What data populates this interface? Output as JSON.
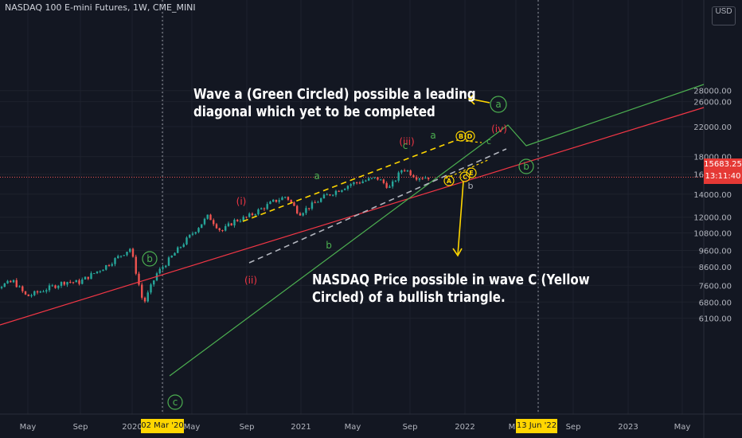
{
  "header": {
    "title": "NASDAQ 100 E-mini Futures, 1W, CME_MINI"
  },
  "annotations": {
    "top": "Wave a (Green Circled) possible a leading\ndiagonal which yet to be completed",
    "bottom": "NASDAQ Price possible in wave C (Yellow\nCircled) of a bullish triangle."
  },
  "price_axis": {
    "currency": "USD",
    "last_price": "15683.25",
    "countdown": "13:11:40"
  },
  "time_markers": {
    "left": "02 Mar '20",
    "right": "13 Jun '22"
  },
  "colors": {
    "background": "#131722",
    "up": "#26a69a",
    "down": "#ef5350",
    "green_line": "#4caf50",
    "red_line": "#f23645",
    "yellow": "#ffd600",
    "grey_dashed": "#b2b5be"
  },
  "chart_data": {
    "type": "candlestick",
    "symbol": "NASDAQ 100 E-mini Futures",
    "timeframe": "1W",
    "exchange": "CME_MINI",
    "y_scale": "log",
    "ylim": [
      6000,
      30000
    ],
    "y_ticks": [
      "28000.00",
      "26000.00",
      "22000.00",
      "18000.00",
      "16000.00",
      "14000.00",
      "12000.00",
      "10800.00",
      "9600.00",
      "8600.00",
      "7600.00",
      "6800.00",
      "6100.00"
    ],
    "x_ticks": [
      "May",
      "Sep",
      "2020",
      "02 Mar '20",
      "May",
      "Sep",
      "2021",
      "May",
      "Sep",
      "2022",
      "Mar",
      "13 Jun '22",
      "Sep",
      "2023",
      "May"
    ],
    "last_price": 15683.25,
    "price_path": [
      {
        "t": "2019-02",
        "v": 7200
      },
      {
        "t": "2019-05",
        "v": 7800
      },
      {
        "t": "2019-06",
        "v": 7050
      },
      {
        "t": "2019-09",
        "v": 7800
      },
      {
        "t": "2019-10",
        "v": 7750
      },
      {
        "t": "2019-12",
        "v": 8600
      },
      {
        "t": "2020-02",
        "v": 9750
      },
      {
        "t": "2020-03",
        "v": 6700
      },
      {
        "t": "2020-04",
        "v": 8200
      },
      {
        "t": "2020-06",
        "v": 10000
      },
      {
        "t": "2020-08",
        "v": 12100
      },
      {
        "t": "2020-09",
        "v": 10900
      },
      {
        "t": "2020-10",
        "v": 11700
      },
      {
        "t": "2020-11",
        "v": 12000
      },
      {
        "t": "2021-01",
        "v": 13300
      },
      {
        "t": "2021-02",
        "v": 13800
      },
      {
        "t": "2021-03",
        "v": 12300
      },
      {
        "t": "2021-05",
        "v": 13800
      },
      {
        "t": "2021-07",
        "v": 15000
      },
      {
        "t": "2021-09",
        "v": 15600
      },
      {
        "t": "2021-10",
        "v": 14600
      },
      {
        "t": "2021-11",
        "v": 16700
      },
      {
        "t": "2021-12",
        "v": 15700
      },
      {
        "t": "2022-01",
        "v": 15683.25
      }
    ],
    "wave_labels": [
      {
        "text": "b",
        "color": "green",
        "circled": true
      },
      {
        "text": "c",
        "color": "green",
        "circled": true
      },
      {
        "text": "(i)",
        "color": "red"
      },
      {
        "text": "(ii)",
        "color": "red"
      },
      {
        "text": "(iii)",
        "color": "red"
      },
      {
        "text": "(iv)",
        "color": "red"
      },
      {
        "text": "a",
        "color": "green"
      },
      {
        "text": "b",
        "color": "green"
      },
      {
        "text": "c",
        "color": "green"
      },
      {
        "text": "a",
        "color": "green",
        "circled": true
      },
      {
        "text": "b",
        "color": "green",
        "circled": true
      },
      {
        "text": "A",
        "color": "yellow",
        "circled": true
      },
      {
        "text": "B",
        "color": "yellow",
        "circled": true
      },
      {
        "text": "C",
        "color": "yellow",
        "circled": true
      },
      {
        "text": "D",
        "color": "yellow",
        "circled": true
      },
      {
        "text": "E",
        "color": "yellow",
        "circled": true
      }
    ]
  }
}
